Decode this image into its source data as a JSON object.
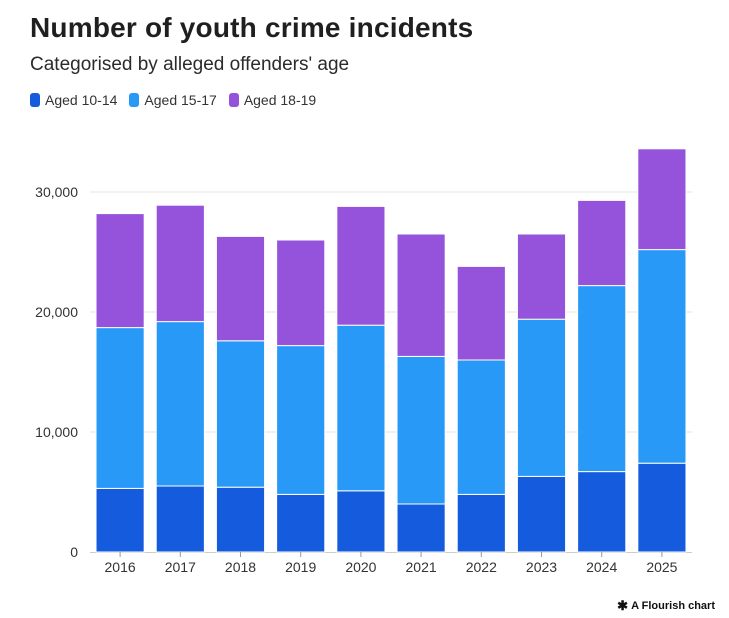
{
  "title": "Number of youth crime incidents",
  "subtitle": "Categorised by alleged offenders' age",
  "footer": {
    "icon": "flourish-star-icon",
    "glyph": "✱",
    "text": "A Flourish chart"
  },
  "colors": {
    "aged_10_14": "#155bde",
    "aged_15_17": "#2999f7",
    "aged_18_19": "#9552db",
    "grid": "#e6e6e6",
    "axis": "#cccccc"
  },
  "chart_data": {
    "type": "bar",
    "stacked": true,
    "categories": [
      "2016",
      "2017",
      "2018",
      "2019",
      "2020",
      "2021",
      "2022",
      "2023",
      "2024",
      "2025"
    ],
    "series": [
      {
        "name": "Aged 10-14",
        "color": "#155bde",
        "values": [
          5300,
          5500,
          5400,
          4800,
          5100,
          4000,
          4800,
          6300,
          6700,
          7400
        ]
      },
      {
        "name": "Aged 15-17",
        "color": "#2999f7",
        "values": [
          13400,
          13700,
          12200,
          12400,
          13800,
          12300,
          11200,
          13100,
          15500,
          17800
        ]
      },
      {
        "name": "Aged 18-19",
        "color": "#9552db",
        "values": [
          9500,
          9700,
          8700,
          8800,
          9900,
          10200,
          7800,
          7100,
          7100,
          8400
        ]
      }
    ],
    "yticks": [
      0,
      10000,
      20000,
      30000
    ],
    "ytick_labels": [
      "0",
      "10,000",
      "20,000",
      "30,000"
    ],
    "ylim": [
      0,
      35000
    ],
    "xlabel": "",
    "ylabel": "",
    "legend_position": "top-left",
    "grid": true
  }
}
